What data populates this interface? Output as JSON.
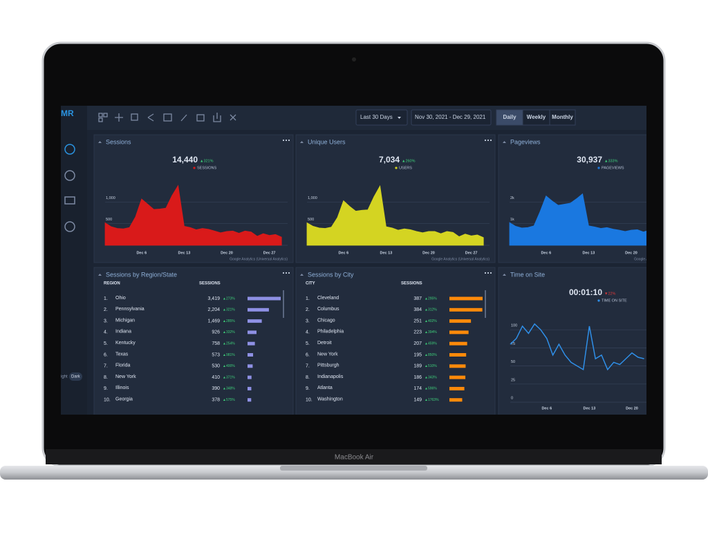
{
  "device": "MacBook Air",
  "sidebar": {
    "logo": "MR",
    "theme": [
      "ight",
      "Dark"
    ]
  },
  "toolbar": {
    "range": "Last 30 Days",
    "dates": "Nov 30, 2021 - Dec 29, 2021",
    "periods": [
      "Daily",
      "Weekly",
      "Monthly"
    ]
  },
  "chart_data": [
    {
      "type": "area",
      "title": "Sessions",
      "total": "14,440",
      "change": "▲321%",
      "metric": "SESSIONS",
      "source": "Google Analytics (Universal Analytics)",
      "color": "#d91a1a",
      "x": [
        "Nov 30",
        "Dec 1",
        "Dec 2",
        "Dec 3",
        "Dec 4",
        "Dec 5",
        "Dec 6",
        "Dec 7",
        "Dec 8",
        "Dec 9",
        "Dec 10",
        "Dec 11",
        "Dec 12",
        "Dec 13",
        "Dec 14",
        "Dec 15",
        "Dec 16",
        "Dec 17",
        "Dec 18",
        "Dec 19",
        "Dec 20",
        "Dec 21",
        "Dec 22",
        "Dec 23",
        "Dec 24",
        "Dec 25",
        "Dec 26",
        "Dec 27",
        "Dec 28",
        "Dec 29"
      ],
      "values": [
        520,
        430,
        390,
        380,
        410,
        660,
        1070,
        950,
        830,
        840,
        860,
        1150,
        1380,
        440,
        410,
        360,
        390,
        370,
        330,
        290,
        320,
        330,
        280,
        330,
        310,
        210,
        270,
        230,
        250,
        190
      ],
      "ylim": [
        0,
        1500
      ],
      "yticks": [
        0,
        500,
        {
          "value": 1000,
          "label": "1,000"
        }
      ],
      "xticks": [
        "Dec 6",
        "Dec 13",
        "Dec 20",
        "Dec 27"
      ]
    },
    {
      "type": "area",
      "title": "Unique Users",
      "total": "7,034",
      "change": "▲260%",
      "metric": "USERS",
      "source": "Google Analytics (Universal Analytics)",
      "color": "#d4d422",
      "x": [
        "Nov 30",
        "Dec 1",
        "Dec 2",
        "Dec 3",
        "Dec 4",
        "Dec 5",
        "Dec 6",
        "Dec 7",
        "Dec 8",
        "Dec 9",
        "Dec 10",
        "Dec 11",
        "Dec 12",
        "Dec 13",
        "Dec 14",
        "Dec 15",
        "Dec 16",
        "Dec 17",
        "Dec 18",
        "Dec 19",
        "Dec 20",
        "Dec 21",
        "Dec 22",
        "Dec 23",
        "Dec 24",
        "Dec 25",
        "Dec 26",
        "Dec 27",
        "Dec 28",
        "Dec 29"
      ],
      "values": [
        520,
        440,
        400,
        390,
        420,
        640,
        1030,
        900,
        790,
        810,
        820,
        1120,
        1370,
        430,
        400,
        350,
        380,
        360,
        320,
        290,
        320,
        320,
        270,
        320,
        300,
        200,
        260,
        220,
        240,
        180
      ],
      "ylim": [
        0,
        1500
      ],
      "yticks": [
        0,
        500,
        {
          "value": 1000,
          "label": "1,000"
        }
      ],
      "xticks": [
        "Dec 6",
        "Dec 13",
        "Dec 20",
        "Dec 27"
      ]
    },
    {
      "type": "area",
      "title": "Pageviews",
      "total": "30,937",
      "change": "▲333%",
      "metric": "PAGEVIEWS",
      "source": "Google Analytics (Universal Analytics)",
      "color": "#1a78e0",
      "x": [
        "Nov 30",
        "Dec 1",
        "Dec 2",
        "Dec 3",
        "Dec 4",
        "Dec 5",
        "Dec 6",
        "Dec 7",
        "Dec 8",
        "Dec 9",
        "Dec 10",
        "Dec 11",
        "Dec 12",
        "Dec 13",
        "Dec 14",
        "Dec 15",
        "Dec 16",
        "Dec 17",
        "Dec 18",
        "Dec 19",
        "Dec 20",
        "Dec 21",
        "Dec 22",
        "Dec 23",
        "Dec 24",
        "Dec 25",
        "Dec 26",
        "Dec 27",
        "Dec 28",
        "Dec 29"
      ],
      "values": [
        1050,
        880,
        800,
        820,
        900,
        1550,
        2280,
        2050,
        1850,
        1900,
        1950,
        2150,
        2380,
        900,
        850,
        780,
        820,
        750,
        700,
        640,
        700,
        720,
        620,
        700,
        660,
        480,
        580,
        520,
        560,
        450
      ],
      "ylim": [
        0,
        3000
      ],
      "yticks": [
        {
          "value": 0,
          "label": "0k"
        },
        {
          "value": 1000,
          "label": "1k"
        },
        {
          "value": 2000,
          "label": "2k"
        }
      ],
      "xticks": [
        "Dec 6",
        "Dec 13",
        "Dec 20",
        "Dec 27"
      ]
    },
    {
      "type": "line",
      "title": "Time on Site",
      "total": "00:01:10",
      "change": "▼22%",
      "metric": "TIME ON SITE",
      "color": "#2f8fe8",
      "x": [
        "Nov 30",
        "Dec 1",
        "Dec 2",
        "Dec 3",
        "Dec 4",
        "Dec 5",
        "Dec 6",
        "Dec 7",
        "Dec 8",
        "Dec 9",
        "Dec 10",
        "Dec 11",
        "Dec 12",
        "Dec 13",
        "Dec 14",
        "Dec 15",
        "Dec 16",
        "Dec 17",
        "Dec 18",
        "Dec 19",
        "Dec 20",
        "Dec 21",
        "Dec 22"
      ],
      "values": [
        80,
        88,
        105,
        95,
        108,
        100,
        88,
        65,
        80,
        65,
        55,
        50,
        45,
        105,
        60,
        65,
        45,
        55,
        52,
        60,
        68,
        62,
        60
      ],
      "ylim": [
        0,
        125
      ],
      "yticks": [
        0,
        25,
        50,
        75,
        100
      ],
      "xticks": [
        "Dec 6",
        "Dec 13",
        "Dec 20"
      ]
    }
  ],
  "tables": [
    {
      "title": "Sessions by Region/State",
      "columns": [
        "REGION",
        "SESSIONS"
      ],
      "color": "#8e90e4",
      "rows": [
        {
          "rank": "1.",
          "name": "Ohio",
          "sessions": {
            "value": 3419,
            "label": "3,419"
          },
          "change": "▲273%"
        },
        {
          "rank": "2.",
          "name": "Pennsylvania",
          "sessions": {
            "value": 2204,
            "label": "2,204"
          },
          "change": "▲321%"
        },
        {
          "rank": "3.",
          "name": "Michigan",
          "sessions": {
            "value": 1469,
            "label": "1,469"
          },
          "change": "▲285%"
        },
        {
          "rank": "4.",
          "name": "Indiana",
          "sessions": {
            "value": 926,
            "label": "926"
          },
          "change": "▲332%"
        },
        {
          "rank": "5.",
          "name": "Kentucky",
          "sessions": {
            "value": 758,
            "label": "758"
          },
          "change": "▲254%"
        },
        {
          "rank": "6.",
          "name": "Texas",
          "sessions": {
            "value": 573,
            "label": "573"
          },
          "change": "▲981%"
        },
        {
          "rank": "7.",
          "name": "Florida",
          "sessions": {
            "value": 530,
            "label": "530"
          },
          "change": "▲400%"
        },
        {
          "rank": "8.",
          "name": "New York",
          "sessions": {
            "value": 410,
            "label": "410"
          },
          "change": "▲371%"
        },
        {
          "rank": "9.",
          "name": "Illinois",
          "sessions": {
            "value": 390,
            "label": "390"
          },
          "change": "▲348%"
        },
        {
          "rank": "10.",
          "name": "Georgia",
          "sessions": {
            "value": 378,
            "label": "378"
          },
          "change": "▲575%"
        }
      ]
    },
    {
      "title": "Sessions by City",
      "columns": [
        "CITY",
        "SESSIONS"
      ],
      "color": "#ff8a0a",
      "rows": [
        {
          "rank": "1.",
          "name": "Cleveland",
          "sessions": {
            "value": 387,
            "label": "387"
          },
          "change": "▲295%"
        },
        {
          "rank": "2.",
          "name": "Columbus",
          "sessions": {
            "value": 384,
            "label": "384"
          },
          "change": "▲312%"
        },
        {
          "rank": "3.",
          "name": "Chicago",
          "sessions": {
            "value": 251,
            "label": "251"
          },
          "change": "▲402%"
        },
        {
          "rank": "4.",
          "name": "Philadelphia",
          "sessions": {
            "value": 223,
            "label": "223"
          },
          "change": "▲394%"
        },
        {
          "rank": "5.",
          "name": "Detroit",
          "sessions": {
            "value": 207,
            "label": "207"
          },
          "change": "▲459%"
        },
        {
          "rank": "6.",
          "name": "New York",
          "sessions": {
            "value": 195,
            "label": "195"
          },
          "change": "▲850%"
        },
        {
          "rank": "7.",
          "name": "Pittsburgh",
          "sessions": {
            "value": 189,
            "label": "189"
          },
          "change": "▲510%"
        },
        {
          "rank": "8.",
          "name": "Indianapolis",
          "sessions": {
            "value": 186,
            "label": "186"
          },
          "change": "▲343%"
        },
        {
          "rank": "9.",
          "name": "Atlanta",
          "sessions": {
            "value": 174,
            "label": "174"
          },
          "change": "▲596%"
        },
        {
          "rank": "10.",
          "name": "Washington",
          "sessions": {
            "value": 149,
            "label": "149"
          },
          "change": "▲1763%"
        }
      ]
    }
  ]
}
